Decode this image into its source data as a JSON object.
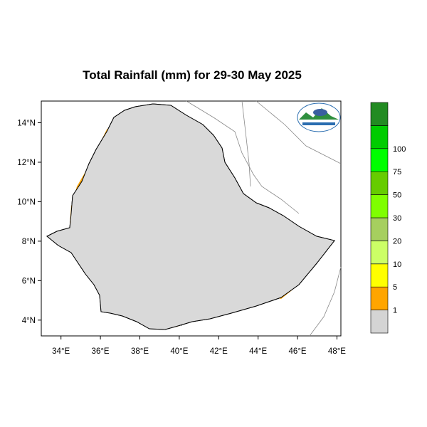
{
  "title": "Total Rainfall (mm) for 29-30 May 2025",
  "map": {
    "region": "Ethiopia",
    "lon_ticks": [
      "34°E",
      "36°E",
      "38°E",
      "40°E",
      "42°E",
      "44°E",
      "46°E",
      "48°E"
    ],
    "lat_ticks": [
      "14°N",
      "12°N",
      "10°N",
      "8°N",
      "6°N",
      "4°N"
    ],
    "lon_range": [
      33.0,
      48.2
    ],
    "lat_range": [
      3.2,
      15.1
    ],
    "background_color": "#d9d9d9",
    "border_color": "#000000"
  },
  "colorbar": {
    "classes": [
      {
        "range": "<1",
        "color": "#d4d4d4"
      },
      {
        "range": "1-5",
        "color": "#ffa500"
      },
      {
        "range": "5-10",
        "color": "#ffff00"
      },
      {
        "range": "10-20",
        "color": "#ccff66"
      },
      {
        "range": "20-30",
        "color": "#a6cf5f"
      },
      {
        "range": "30-50",
        "color": "#7fff00"
      },
      {
        "range": "50-75",
        "color": "#66cc00"
      },
      {
        "range": "75-100",
        "color": "#00ff00"
      },
      {
        "range": "100+",
        "color": "#00cc00"
      },
      {
        "range": "top",
        "color": "#228b22"
      }
    ],
    "tick_labels": [
      "1",
      "5",
      "10",
      "20",
      "30",
      "50",
      "75",
      "100"
    ]
  },
  "logo": {
    "name": "ethiopian-meteorological-institute-logo"
  }
}
